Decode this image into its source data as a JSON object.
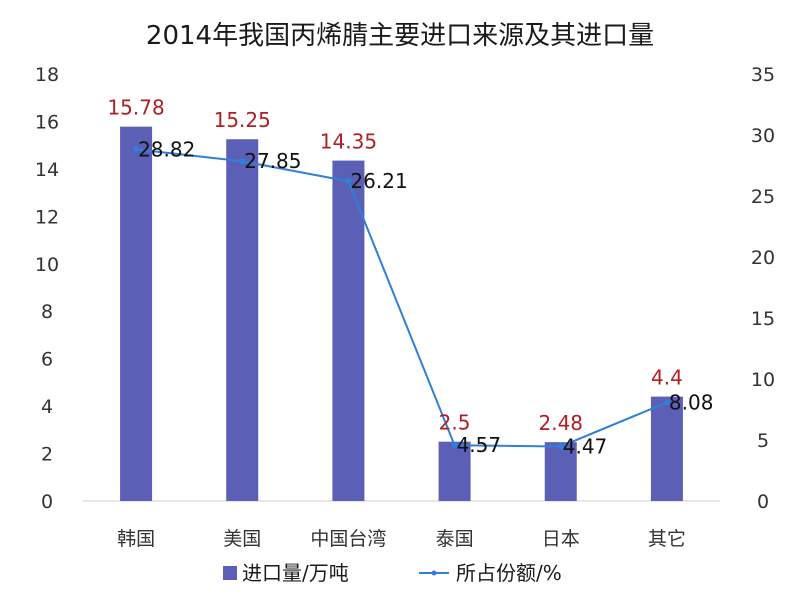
{
  "chart_data": {
    "type": "bar+line",
    "title": "2014年我国丙烯腈主要进口来源及其进口量",
    "categories": [
      "韩国",
      "美国",
      "中国台湾",
      "泰国",
      "日本",
      "其它"
    ],
    "series": [
      {
        "name": "进口量/万吨",
        "type": "bar",
        "axis": "left",
        "color": "#5b5fb5",
        "values": [
          15.78,
          15.25,
          14.35,
          2.5,
          2.48,
          4.4
        ],
        "labels": [
          "15.78",
          "15.25",
          "14.35",
          "2.5",
          "2.48",
          "4.4"
        ]
      },
      {
        "name": "所占份额/%",
        "type": "line",
        "axis": "right",
        "color": "#2f80d6",
        "values": [
          28.82,
          27.85,
          26.21,
          4.57,
          4.47,
          8.08
        ],
        "labels": [
          "28.82",
          "27.85",
          "26.21",
          "4.57",
          "4.47",
          "8.08"
        ]
      }
    ],
    "left_axis": {
      "min": 0,
      "max": 18,
      "step": 2,
      "ticks": [
        "0",
        "2",
        "4",
        "6",
        "8",
        "10",
        "12",
        "14",
        "16",
        "18"
      ]
    },
    "right_axis": {
      "min": 0,
      "max": 35,
      "step": 5,
      "ticks": [
        "0",
        "5",
        "10",
        "15",
        "20",
        "25",
        "30",
        "35"
      ]
    },
    "grid": false,
    "legend_position": "bottom"
  }
}
